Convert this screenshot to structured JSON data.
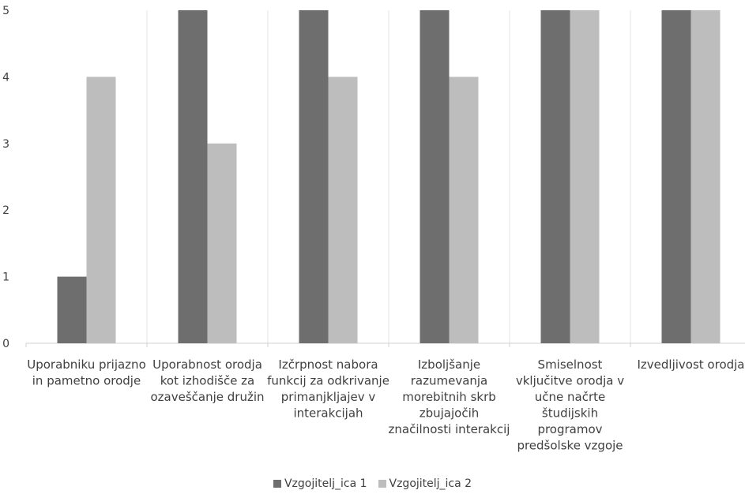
{
  "chart_data": {
    "type": "bar",
    "title": "",
    "xlabel": "",
    "ylabel": "",
    "ylim": [
      0,
      5
    ],
    "yticks": [
      "0",
      "1",
      "2",
      "3",
      "4",
      "5"
    ],
    "grid": "vertical category separators",
    "legend_position": "bottom",
    "categories": [
      [
        "Uporabniku prijazno",
        "in pametno orodje"
      ],
      [
        "Uporabnost orodja",
        "kot izhodišče za",
        "ozaveščanje družin"
      ],
      [
        "Izčrpnost nabora",
        "funkcij za odkrivanje",
        "primanjkljajev v",
        "interakcijah"
      ],
      [
        "Izboljšanje",
        "razumevanja",
        "morebitnih skrb",
        "zbujajočih",
        "značilnosti interakcij"
      ],
      [
        "Smiselnost",
        "vključitve orodja v",
        "učne načrte",
        "študijskih",
        "programov",
        "predšolske vzgoje"
      ],
      [
        "Izvedljivost orodja"
      ]
    ],
    "series": [
      {
        "name": "Vzgojitelj_ica 1",
        "color": "#6e6e6e",
        "values": [
          1,
          5,
          5,
          5,
          5,
          5
        ]
      },
      {
        "name": "Vzgojitelj_ica 2",
        "color": "#bdbdbd",
        "values": [
          4,
          3,
          4,
          4,
          5,
          5
        ]
      }
    ]
  }
}
